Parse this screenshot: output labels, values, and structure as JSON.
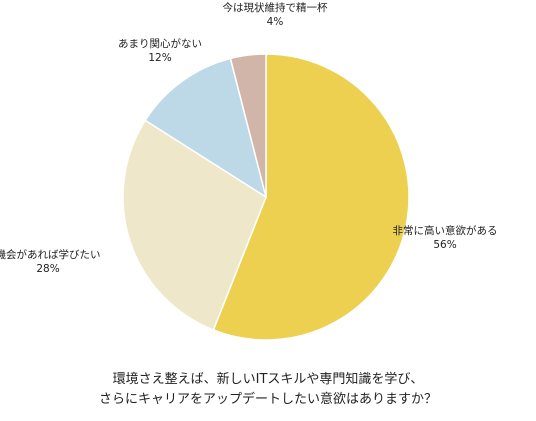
{
  "chart_data": {
    "type": "pie",
    "title_lines": [
      "環境さえ整えば、新しいITスキルや専門知識を学び、",
      "さらにキャリアをアップデートしたい意欲はありますか？"
    ],
    "slices": [
      {
        "label": "非常に高い意欲がある",
        "value": 56,
        "display": "56%",
        "color": "#EDD050"
      },
      {
        "label": "機会があれば学びたい",
        "value": 28,
        "display": "28%",
        "color": "#EEE7C9"
      },
      {
        "label": "あまり関心がない",
        "value": 12,
        "display": "12%",
        "color": "#BDD8E6"
      },
      {
        "label": "今は現状維持で精一杯",
        "value": 4,
        "display": "4%",
        "color": "#D2B5A9"
      }
    ],
    "start": "12 o'clock, clockwise",
    "legend": "none"
  }
}
